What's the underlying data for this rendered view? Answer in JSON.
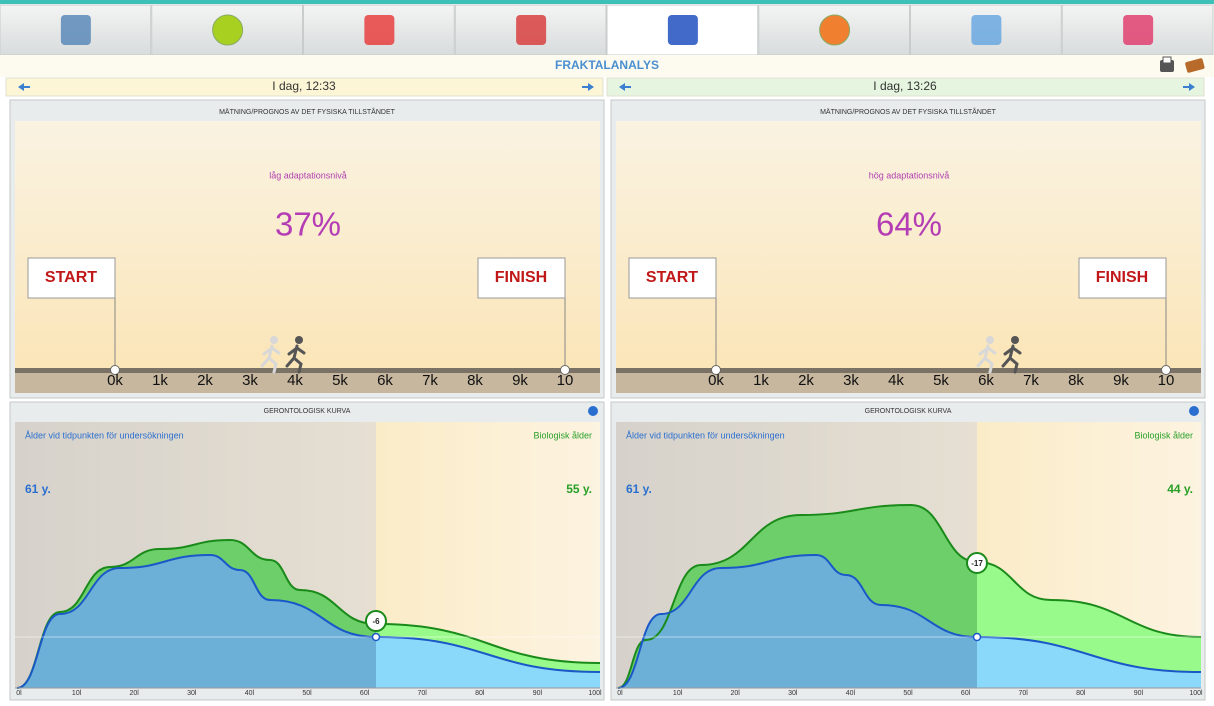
{
  "title": "FRAKTALANALYS",
  "panels": [
    {
      "date": "I dag, 12:33",
      "fitness": {
        "title": "MÄTNING/PROGNOS AV DET FYSISKA TILLSTÅNDET",
        "level": "låg adaptationsnivå",
        "percent": "37%",
        "start": "START",
        "finish": "FINISH",
        "scale": [
          "0k",
          "1k",
          "2k",
          "3k",
          "4k",
          "5k",
          "6k",
          "7k",
          "8k",
          "9k",
          "10"
        ]
      },
      "gerontology": {
        "title": "GERONTOLOGISK KURVA",
        "age_label": "Ålder vid tidpunkten för undersökningen",
        "bio_label": "Biologisk ålder",
        "age": "61 y.",
        "bio_age": "55 y.",
        "difference": "-6",
        "axis": [
          "0l",
          "10l",
          "20l",
          "30l",
          "40l",
          "50l",
          "60l",
          "70l",
          "80l",
          "90l",
          "100l"
        ]
      }
    },
    {
      "date": "I dag, 13:26",
      "fitness": {
        "title": "MÄTNING/PROGNOS AV DET FYSISKA TILLSTÅNDET",
        "level": "hög adaptationsnivå",
        "percent": "64%",
        "start": "START",
        "finish": "FINISH",
        "scale": [
          "0k",
          "1k",
          "2k",
          "3k",
          "4k",
          "5k",
          "6k",
          "7k",
          "8k",
          "9k",
          "10"
        ]
      },
      "gerontology": {
        "title": "GERONTOLOGISK KURVA",
        "age_label": "Ålder vid tidpunkten för undersökningen",
        "bio_label": "Biologisk ålder",
        "age": "61 y.",
        "bio_age": "44 y.",
        "difference": "-17",
        "axis": [
          "0l",
          "10l",
          "20l",
          "30l",
          "40l",
          "50l",
          "60l",
          "70l",
          "80l",
          "90l",
          "100l"
        ]
      }
    }
  ]
}
